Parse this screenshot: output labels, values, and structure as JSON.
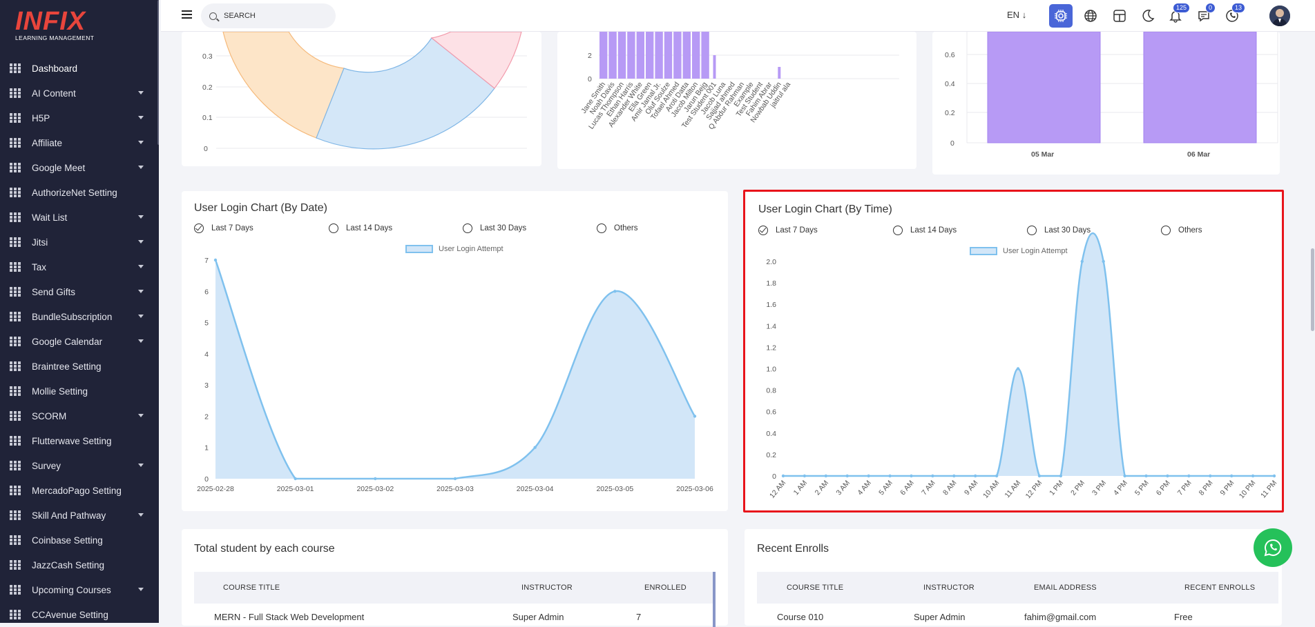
{
  "brand": {
    "logo": "INFIX",
    "subtitle": "LEARNING MANAGEMENT",
    "accent": "#e8453c"
  },
  "sidebar": {
    "items": [
      {
        "label": "Dashboard",
        "dropdown": false
      },
      {
        "label": "AI Content",
        "dropdown": true
      },
      {
        "label": "H5P",
        "dropdown": true
      },
      {
        "label": "Affiliate",
        "dropdown": true
      },
      {
        "label": "Google Meet",
        "dropdown": true
      },
      {
        "label": "AuthorizeNet Setting",
        "dropdown": false
      },
      {
        "label": "Wait List",
        "dropdown": true
      },
      {
        "label": "Jitsi",
        "dropdown": true
      },
      {
        "label": "Tax",
        "dropdown": true
      },
      {
        "label": "Send Gifts",
        "dropdown": true
      },
      {
        "label": "BundleSubscription",
        "dropdown": true
      },
      {
        "label": "Google Calendar",
        "dropdown": true
      },
      {
        "label": "Braintree Setting",
        "dropdown": false
      },
      {
        "label": "Mollie Setting",
        "dropdown": false
      },
      {
        "label": "SCORM",
        "dropdown": true
      },
      {
        "label": "Flutterwave Setting",
        "dropdown": false
      },
      {
        "label": "Survey",
        "dropdown": true
      },
      {
        "label": "MercadoPago Setting",
        "dropdown": false
      },
      {
        "label": "Skill And Pathway",
        "dropdown": true
      },
      {
        "label": "Coinbase Setting",
        "dropdown": false
      },
      {
        "label": "JazzCash Setting",
        "dropdown": false
      },
      {
        "label": "Upcoming Courses",
        "dropdown": true
      },
      {
        "label": "CCAvenue Setting",
        "dropdown": false
      }
    ]
  },
  "topbar": {
    "search_placeholder": "SEARCH",
    "language": "EN",
    "notifications_count": "125",
    "messages_count": "0",
    "chat_count": "13",
    "accent": "#4a66d8"
  },
  "top_cards": {
    "pie_ticks": [
      "0.3",
      "0.2",
      "0.1",
      "0"
    ],
    "bar_names_ticks": [
      "2",
      "0"
    ],
    "bar_names": [
      "Jane Smith",
      "Noah Davis",
      "Lucas Thompson",
      "Ethan Harris",
      "Alexander White",
      "Ella Green",
      "Amir Jamal Jr.",
      "Oluf Soulze",
      "Tofael Ahmed",
      "Aroti Datta",
      "Jacob Milton",
      "Jarun Bejg",
      "Test Student 001",
      "Jacob Luna",
      "Sajjad ahmed",
      "Q Abdur Rahman",
      "Example",
      "Test Student",
      "Fahim Abrar",
      "Nowbab Uddin",
      "jaitrul ala"
    ],
    "date_bar_ticks": [
      "0.6",
      "0.4",
      "0.2",
      "0"
    ],
    "date_bar_labels": [
      "05 Mar",
      "06 Mar"
    ]
  },
  "login_by_date": {
    "title": "User Login Chart (By Date)",
    "options": [
      "Last 7 Days",
      "Last 14 Days",
      "Last 30 Days",
      "Others"
    ],
    "selected": "Last 7 Days",
    "legend": "User Login Attempt",
    "chart_data": {
      "type": "area",
      "x": [
        "2025-02-28",
        "2025-03-01",
        "2025-03-02",
        "2025-03-03",
        "2025-03-04",
        "2025-03-05",
        "2025-03-06"
      ],
      "series": [
        {
          "name": "User Login Attempt",
          "values": [
            7,
            0,
            0,
            0,
            1,
            6,
            2
          ]
        }
      ],
      "yticks": [
        "0",
        "1",
        "2",
        "3",
        "4",
        "5",
        "6",
        "7"
      ],
      "ylim": [
        0,
        7
      ]
    }
  },
  "login_by_time": {
    "title": "User Login Chart (By Time)",
    "options": [
      "Last 7 Days",
      "Last 14 Days",
      "Last 30 Days",
      "Others"
    ],
    "selected": "Last 7 Days",
    "legend": "User Login Attempt",
    "chart_data": {
      "type": "area",
      "x": [
        "12 AM",
        "1 AM",
        "2 AM",
        "3 AM",
        "4 AM",
        "5 AM",
        "6 AM",
        "7 AM",
        "8 AM",
        "9 AM",
        "10 AM",
        "11 AM",
        "12 PM",
        "1 PM",
        "2 PM",
        "3 PM",
        "4 PM",
        "5 PM",
        "6 PM",
        "7 PM",
        "8 PM",
        "9 PM",
        "10 PM",
        "11 PM"
      ],
      "series": [
        {
          "name": "User Login Attempt",
          "values": [
            0,
            0,
            0,
            0,
            0,
            0,
            0,
            0,
            0,
            0,
            0,
            1,
            0,
            0,
            2,
            2,
            0,
            0,
            0,
            0,
            0,
            0,
            0,
            0
          ]
        }
      ],
      "yticks": [
        "0",
        "0.2",
        "0.4",
        "0.6",
        "0.8",
        "1.0",
        "1.2",
        "1.4",
        "1.6",
        "1.8",
        "2.0"
      ],
      "ylim": [
        0,
        2
      ]
    }
  },
  "total_students": {
    "title": "Total student by each course",
    "headers": [
      "COURSE TITLE",
      "INSTRUCTOR",
      "ENROLLED"
    ],
    "rows": [
      [
        "MERN - Full Stack Web Development",
        "Super Admin",
        "7"
      ]
    ]
  },
  "recent_enrolls": {
    "title": "Recent Enrolls",
    "headers": [
      "COURSE TITLE",
      "INSTRUCTOR",
      "EMAIL ADDRESS",
      "RECENT ENROLLS"
    ],
    "rows": [
      [
        "Course 010",
        "Super Admin",
        "fahim@gmail.com",
        "Free"
      ]
    ]
  },
  "colors": {
    "line": "#7fc1ee",
    "fill": "#d2e6f8",
    "bar": "#b79af5",
    "highlight": "#e8141b"
  }
}
